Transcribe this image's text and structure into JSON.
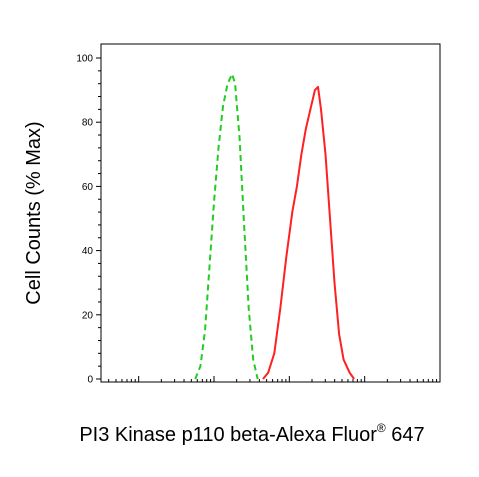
{
  "chart_data": {
    "type": "line",
    "title": "",
    "xlabel": "PI3 Kinase p110 beta-Alexa Fluor",
    "xlabel_superscript": "®",
    "xlabel_suffix": " 647",
    "ylabel": "Cell Counts (% Max)",
    "x_scale": "log",
    "xlim": [
      -0.5,
      4
    ],
    "ylim": [
      0,
      100
    ],
    "y_ticks": [
      "0",
      "20",
      "40",
      "60",
      "80",
      "100"
    ],
    "grid": false,
    "legend": "none",
    "series": [
      {
        "color": "#22cc22",
        "style": "dashed",
        "points": [
          [
            0.75,
            0
          ],
          [
            0.82,
            4
          ],
          [
            0.88,
            15
          ],
          [
            0.94,
            35
          ],
          [
            1.0,
            55
          ],
          [
            1.06,
            72
          ],
          [
            1.12,
            85
          ],
          [
            1.18,
            92
          ],
          [
            1.24,
            95
          ],
          [
            1.28,
            92
          ],
          [
            1.34,
            75
          ],
          [
            1.4,
            48
          ],
          [
            1.46,
            22
          ],
          [
            1.52,
            6
          ],
          [
            1.58,
            0
          ]
        ]
      },
      {
        "color": "#ff2020",
        "style": "solid",
        "points": [
          [
            1.65,
            0
          ],
          [
            1.72,
            2
          ],
          [
            1.8,
            8
          ],
          [
            1.88,
            22
          ],
          [
            1.96,
            38
          ],
          [
            2.04,
            52
          ],
          [
            2.1,
            60
          ],
          [
            2.16,
            70
          ],
          [
            2.22,
            78
          ],
          [
            2.28,
            84
          ],
          [
            2.34,
            90
          ],
          [
            2.38,
            91
          ],
          [
            2.42,
            84
          ],
          [
            2.48,
            70
          ],
          [
            2.54,
            50
          ],
          [
            2.6,
            30
          ],
          [
            2.66,
            14
          ],
          [
            2.72,
            6
          ],
          [
            2.8,
            2
          ],
          [
            2.86,
            0
          ]
        ]
      }
    ]
  }
}
